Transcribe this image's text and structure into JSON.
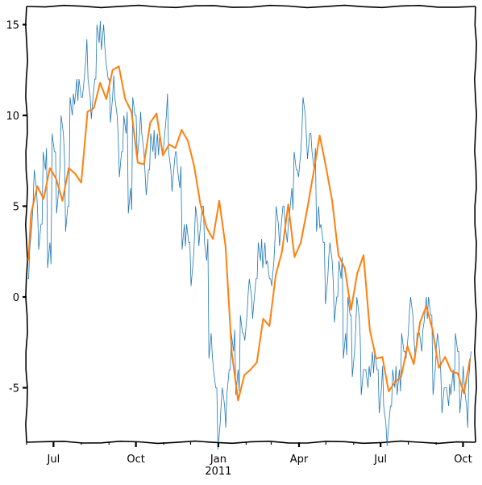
{
  "chart_data": {
    "type": "line",
    "title": "",
    "xlabel": "",
    "ylabel": "",
    "xlim": [
      "2010-06-01",
      "2011-10-15"
    ],
    "ylim": [
      -8,
      16
    ],
    "yticks": [
      -5,
      0,
      5,
      10,
      15
    ],
    "ytick_labels": [
      "-5",
      "0",
      "5",
      "10",
      "15"
    ],
    "xticks": [
      "2010-07-01",
      "2010-10-01",
      "2011-01-01",
      "2011-04-01",
      "2011-07-01",
      "2011-10-01"
    ],
    "xtick_labels": [
      "Jul",
      "Oct",
      "Jan",
      "Apr",
      "Jul",
      "Oct"
    ],
    "xtick_year_label": "2011",
    "grid": false,
    "legend": "none",
    "series": [
      {
        "style": "daily",
        "color": "#1f77b4",
        "x": [
          "2010-06-02",
          "2010-06-07",
          "2010-06-12",
          "2010-06-17",
          "2010-06-22",
          "2010-06-27",
          "2010-07-02",
          "2010-07-07",
          "2010-07-12",
          "2010-07-17",
          "2010-07-22",
          "2010-07-27",
          "2010-08-01",
          "2010-08-06",
          "2010-08-11",
          "2010-08-16",
          "2010-08-21",
          "2010-08-26",
          "2010-08-31",
          "2010-09-05",
          "2010-09-10",
          "2010-09-15",
          "2010-09-20",
          "2010-09-25",
          "2010-09-30",
          "2010-10-05",
          "2010-10-10",
          "2010-10-15",
          "2010-10-20",
          "2010-10-25",
          "2010-10-30",
          "2010-11-04",
          "2010-11-09",
          "2010-11-14",
          "2010-11-19",
          "2010-11-24",
          "2010-11-29",
          "2010-12-04",
          "2010-12-09",
          "2010-12-14",
          "2010-12-19",
          "2010-12-24",
          "2010-12-29",
          "2011-01-03",
          "2011-01-08",
          "2011-01-13",
          "2011-01-18",
          "2011-01-23",
          "2011-01-28",
          "2011-02-02",
          "2011-02-07",
          "2011-02-12",
          "2011-02-17",
          "2011-02-22",
          "2011-02-27",
          "2011-03-04",
          "2011-03-09",
          "2011-03-14",
          "2011-03-19",
          "2011-03-24",
          "2011-03-29",
          "2011-04-03",
          "2011-04-08",
          "2011-04-13",
          "2011-04-18",
          "2011-04-23",
          "2011-04-28",
          "2011-05-03",
          "2011-05-08",
          "2011-05-13",
          "2011-05-18",
          "2011-05-23",
          "2011-05-28",
          "2011-06-02",
          "2011-06-07",
          "2011-06-12",
          "2011-06-17",
          "2011-06-22",
          "2011-06-27",
          "2011-07-02",
          "2011-07-07",
          "2011-07-12",
          "2011-07-17",
          "2011-07-22",
          "2011-07-27",
          "2011-08-01",
          "2011-08-06",
          "2011-08-11",
          "2011-08-16",
          "2011-08-21",
          "2011-08-26",
          "2011-08-31",
          "2011-09-05",
          "2011-09-10",
          "2011-09-15",
          "2011-09-20",
          "2011-09-25",
          "2011-09-30",
          "2011-10-05",
          "2011-10-10"
        ],
        "y": [
          1,
          4,
          6,
          4,
          7,
          3,
          8,
          6,
          9,
          5,
          10,
          12,
          11,
          13,
          11,
          12,
          14,
          15,
          12,
          11,
          10,
          8,
          9,
          6,
          10,
          9,
          8,
          7,
          8,
          9,
          8,
          10,
          7,
          8,
          6,
          4,
          3,
          2,
          4,
          5,
          2,
          -2,
          -5,
          -7,
          -6,
          -4,
          -3,
          -4,
          -2,
          -1,
          0,
          1,
          2,
          3,
          1,
          2,
          4,
          5,
          3,
          6,
          7,
          8,
          10,
          9,
          7,
          5,
          3,
          1,
          2,
          0,
          1,
          -2,
          -1,
          -3,
          -1,
          -4,
          -5,
          -3,
          -4,
          -5,
          -7,
          -6,
          -5,
          -4,
          -3,
          -2,
          -1,
          -2,
          -3,
          0,
          -1,
          -4,
          -3,
          -5,
          -6,
          -4,
          -3,
          -5,
          -6,
          -3
        ]
      },
      {
        "style": "weekly",
        "color": "#ff7f0e",
        "x": [
          "2010-06-03",
          "2010-06-06",
          "2010-06-13",
          "2010-06-20",
          "2010-06-27",
          "2010-07-04",
          "2010-07-11",
          "2010-07-18",
          "2010-07-25",
          "2010-08-01",
          "2010-08-08",
          "2010-08-15",
          "2010-08-22",
          "2010-08-29",
          "2010-09-05",
          "2010-09-12",
          "2010-09-19",
          "2010-09-26",
          "2010-10-03",
          "2010-10-10",
          "2010-10-17",
          "2010-10-24",
          "2010-10-31",
          "2010-11-07",
          "2010-11-14",
          "2010-11-21",
          "2010-11-28",
          "2010-12-05",
          "2010-12-12",
          "2010-12-19",
          "2010-12-26",
          "2011-01-02",
          "2011-01-09",
          "2011-01-16",
          "2011-01-23",
          "2011-01-30",
          "2011-02-06",
          "2011-02-13",
          "2011-02-20",
          "2011-02-27",
          "2011-03-06",
          "2011-03-13",
          "2011-03-20",
          "2011-03-27",
          "2011-04-03",
          "2011-04-10",
          "2011-04-17",
          "2011-04-24",
          "2011-05-01",
          "2011-05-08",
          "2011-05-15",
          "2011-05-22",
          "2011-05-29",
          "2011-06-05",
          "2011-06-12",
          "2011-06-19",
          "2011-06-26",
          "2011-07-03",
          "2011-07-10",
          "2011-07-17",
          "2011-07-24",
          "2011-07-31",
          "2011-08-07",
          "2011-08-14",
          "2011-08-21",
          "2011-08-28",
          "2011-09-04",
          "2011-09-11",
          "2011-09-18",
          "2011-09-25",
          "2011-10-02",
          "2011-10-09"
        ],
        "y": [
          2.0,
          4.6,
          6.1,
          5.4,
          7.1,
          6.5,
          5.3,
          7.1,
          6.8,
          6.3,
          10.2,
          10.4,
          11.8,
          10.9,
          12.5,
          12.7,
          10.9,
          10.2,
          7.4,
          7.3,
          9.6,
          10.1,
          7.8,
          8.4,
          8.2,
          9.2,
          8.6,
          7.2,
          5.1,
          3.8,
          3.2,
          5.3,
          2.8,
          -3.1,
          -5.7,
          -4.3,
          -4.0,
          -3.6,
          -1.2,
          -1.6,
          1.2,
          2.5,
          5.1,
          2.2,
          3.0,
          4.8,
          6.8,
          8.9,
          7.2,
          5.3,
          2.3,
          1.6,
          -0.7,
          1.3,
          2.3,
          -1.8,
          -3.4,
          -3.3,
          -5.2,
          -4.7,
          -4.4,
          -2.7,
          -3.7,
          -1.4,
          -0.5,
          -1.8,
          -3.9,
          -3.3,
          -4.1,
          -4.2,
          -5.3,
          -3.4
        ]
      }
    ]
  }
}
